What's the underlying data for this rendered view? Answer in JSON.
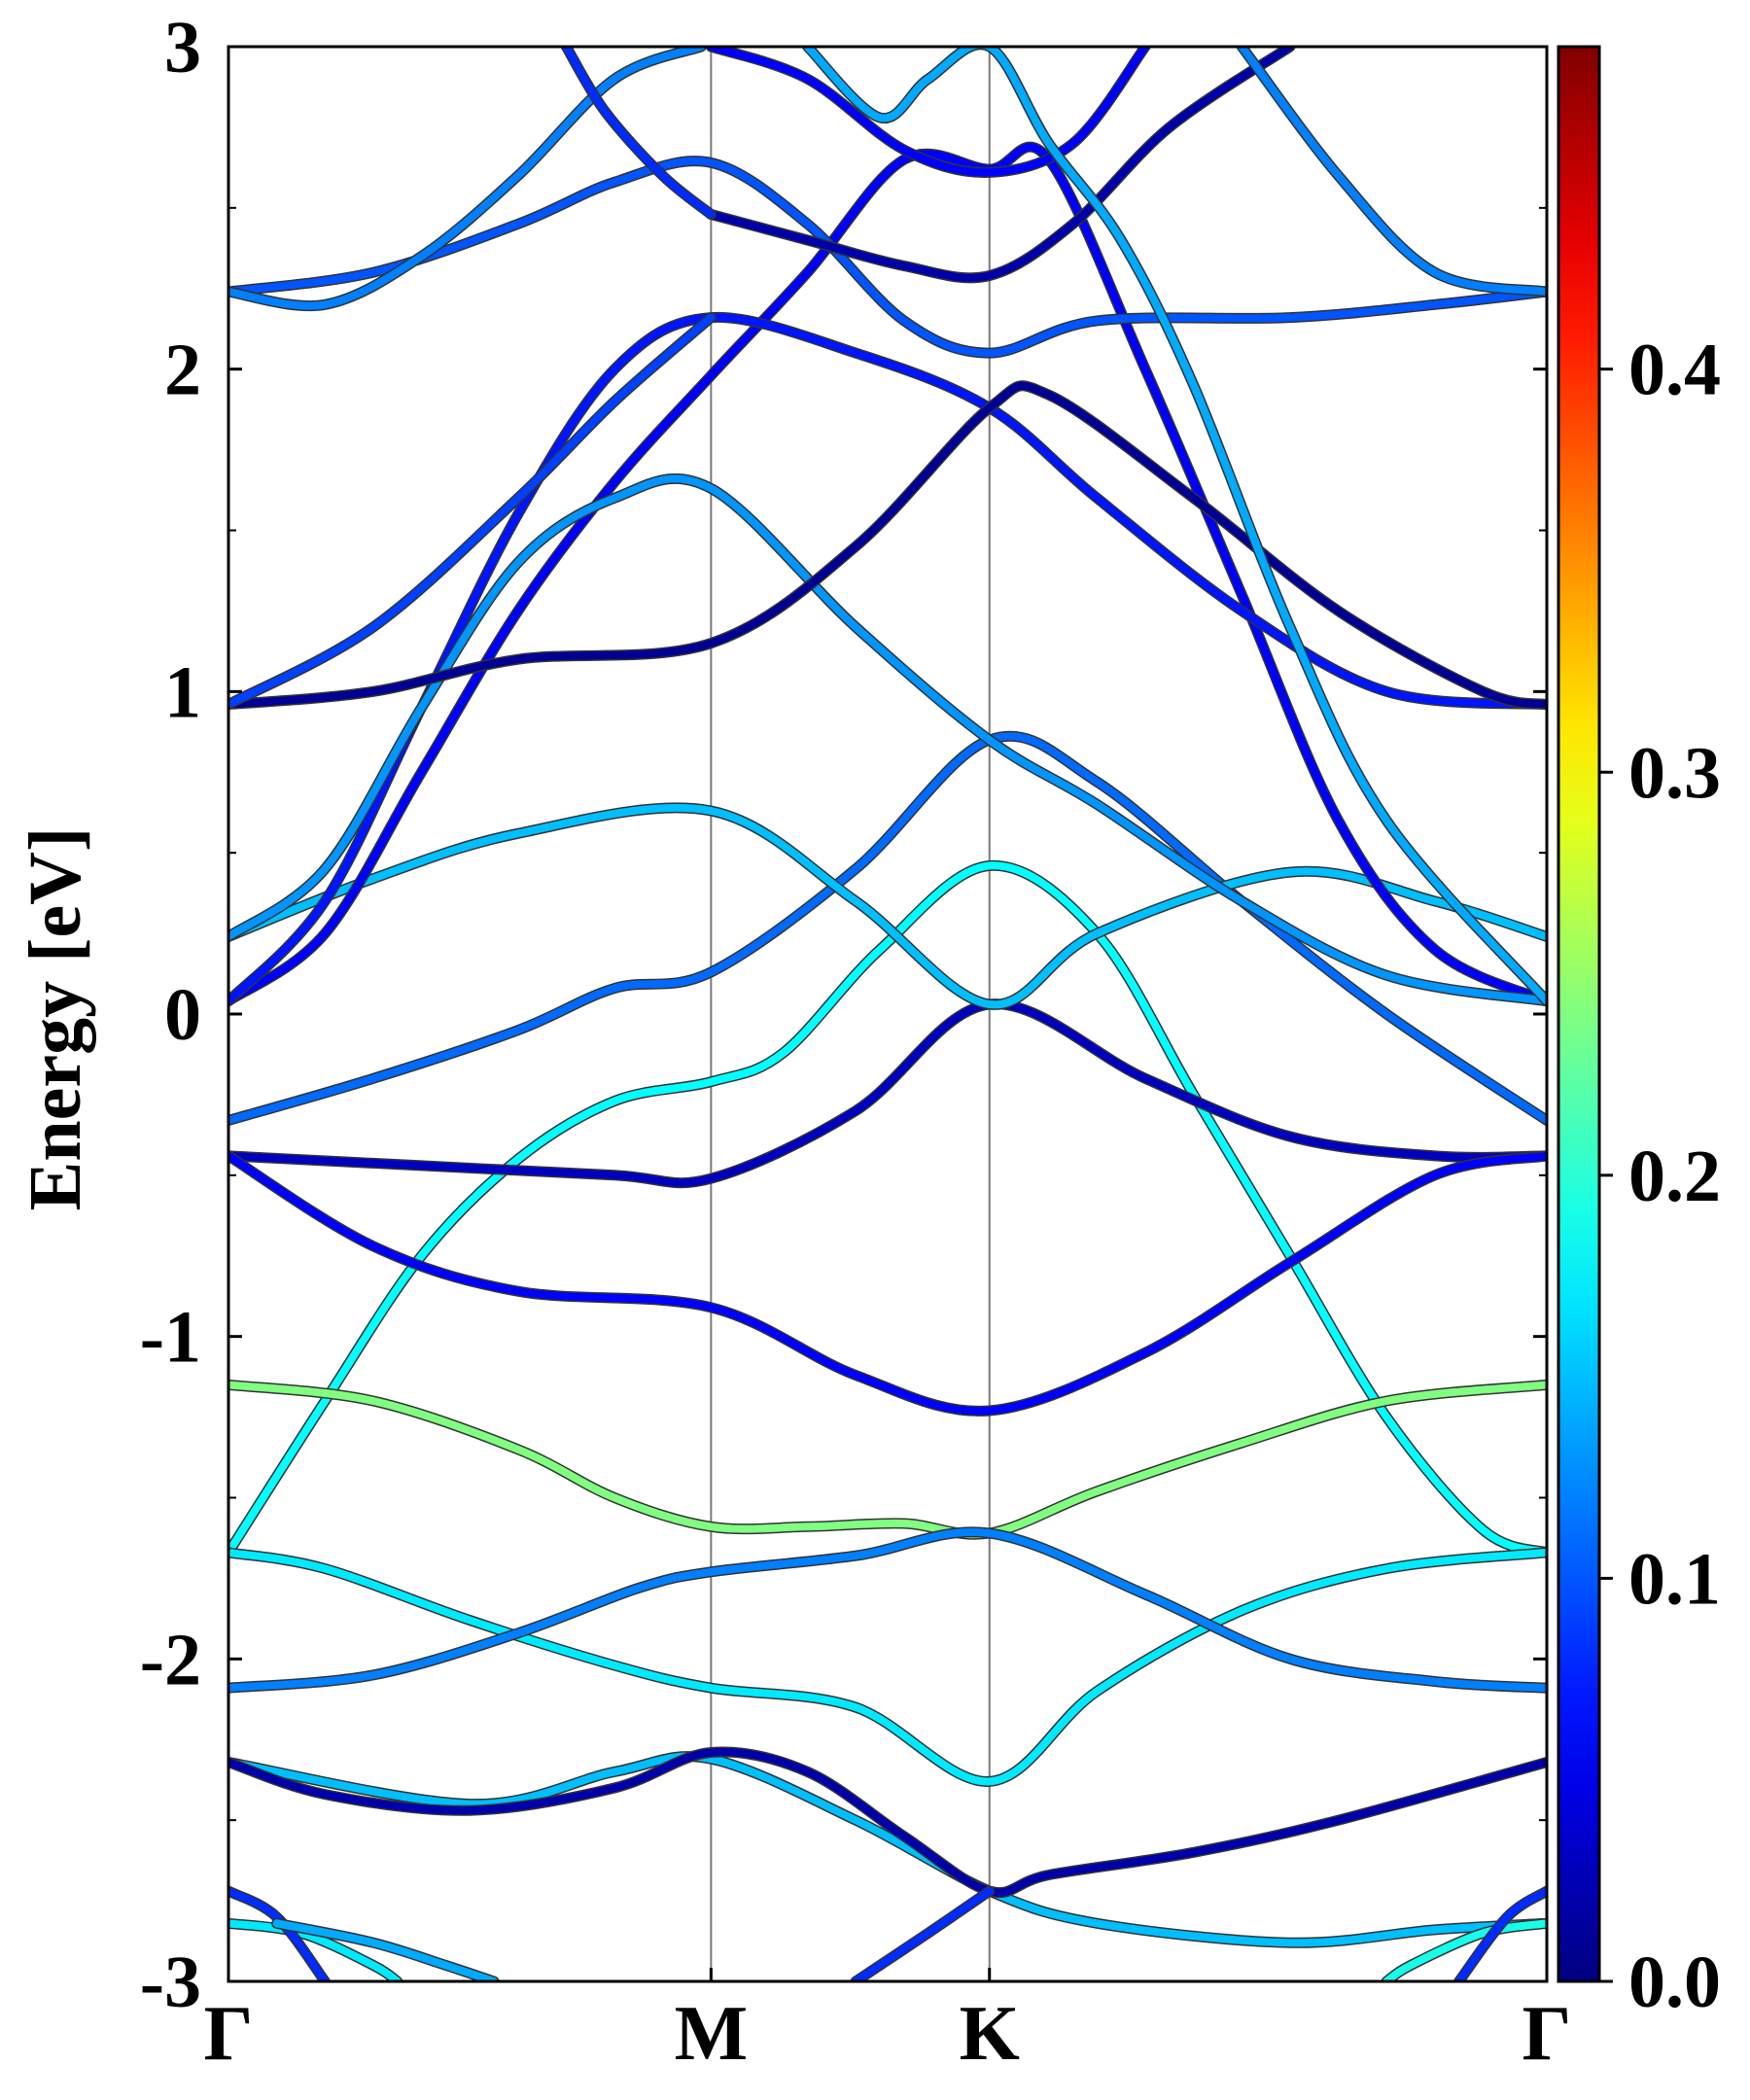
{
  "chart_data": {
    "type": "line",
    "title": "",
    "ylabel": "Energy [eV]",
    "xlabel": "",
    "ylim": [
      -3,
      3
    ],
    "x_ticks": [
      {
        "label": "Γ",
        "x": 0.0
      },
      {
        "label": "M",
        "x": 1.0
      },
      {
        "label": "K",
        "x": 1.577
      },
      {
        "label": "Γ",
        "x": 2.732
      }
    ],
    "y_ticks": [
      {
        "label": "3",
        "value": 3
      },
      {
        "label": "2",
        "value": 2
      },
      {
        "label": "1",
        "value": 1
      },
      {
        "label": "0",
        "value": 0
      },
      {
        "label": "-1",
        "value": -1
      },
      {
        "label": "-2",
        "value": -2
      },
      {
        "label": "-3",
        "value": -3
      }
    ],
    "y_minor_step": 0.5,
    "grid": false,
    "colorbar": {
      "colormap": "jet",
      "range": [
        0.0,
        0.48
      ],
      "ticks": [
        {
          "label": "0.0",
          "value": 0.0
        },
        {
          "label": "0.1",
          "value": 0.1
        },
        {
          "label": "0.2",
          "value": 0.2
        },
        {
          "label": "0.3",
          "value": 0.3
        },
        {
          "label": "0.4",
          "value": 0.4
        }
      ]
    },
    "series": [
      {
        "c": 0.18,
        "points": [
          [
            0,
            -1.67
          ],
          [
            0.2,
            -1.2
          ],
          [
            0.4,
            -0.75
          ],
          [
            0.6,
            -0.45
          ],
          [
            0.8,
            -0.27
          ],
          [
            1.0,
            -0.21
          ],
          [
            1.15,
            -0.12
          ],
          [
            1.35,
            0.2
          ],
          [
            1.577,
            0.46
          ],
          [
            1.8,
            0.25
          ],
          [
            2.0,
            -0.25
          ],
          [
            2.2,
            -0.75
          ],
          [
            2.4,
            -1.25
          ],
          [
            2.6,
            -1.6
          ],
          [
            2.732,
            -1.67
          ]
        ]
      },
      {
        "c": 0.24,
        "points": [
          [
            0,
            -1.15
          ],
          [
            0.3,
            -1.2
          ],
          [
            0.6,
            -1.35
          ],
          [
            0.8,
            -1.5
          ],
          [
            1.0,
            -1.59
          ],
          [
            1.2,
            -1.59
          ],
          [
            1.4,
            -1.58
          ],
          [
            1.577,
            -1.61
          ],
          [
            1.8,
            -1.48
          ],
          [
            2.1,
            -1.33
          ],
          [
            2.4,
            -1.2
          ],
          [
            2.732,
            -1.15
          ]
        ]
      },
      {
        "c": 0.17,
        "points": [
          [
            0,
            -1.67
          ],
          [
            0.2,
            -1.72
          ],
          [
            0.5,
            -1.88
          ],
          [
            0.8,
            -2.02
          ],
          [
            1.0,
            -2.09
          ],
          [
            1.3,
            -2.15
          ],
          [
            1.577,
            -2.38
          ],
          [
            1.8,
            -2.1
          ],
          [
            2.1,
            -1.85
          ],
          [
            2.4,
            -1.72
          ],
          [
            2.732,
            -1.67
          ]
        ]
      },
      {
        "c": 0.12,
        "points": [
          [
            0,
            -2.09
          ],
          [
            0.3,
            -2.05
          ],
          [
            0.6,
            -1.92
          ],
          [
            0.85,
            -1.78
          ],
          [
            1.0,
            -1.73
          ],
          [
            1.3,
            -1.68
          ],
          [
            1.577,
            -1.61
          ],
          [
            1.9,
            -1.8
          ],
          [
            2.2,
            -2.0
          ],
          [
            2.5,
            -2.07
          ],
          [
            2.732,
            -2.09
          ]
        ]
      },
      {
        "c": 0.15,
        "points": [
          [
            0,
            -2.32
          ],
          [
            0.5,
            -2.45
          ],
          [
            0.8,
            -2.35
          ],
          [
            1.0,
            -2.31
          ],
          [
            1.3,
            -2.5
          ],
          [
            1.577,
            -2.72
          ],
          [
            1.8,
            -2.82
          ],
          [
            2.2,
            -2.88
          ],
          [
            2.5,
            -2.84
          ],
          [
            2.732,
            -2.82
          ]
        ]
      },
      {
        "c": 0.03,
        "points": [
          [
            0,
            -0.44
          ],
          [
            0.4,
            -0.47
          ],
          [
            0.8,
            -0.5
          ],
          [
            1.0,
            -0.51
          ],
          [
            1.3,
            -0.3
          ],
          [
            1.577,
            0.03
          ],
          [
            1.9,
            -0.2
          ],
          [
            2.2,
            -0.38
          ],
          [
            2.5,
            -0.44
          ],
          [
            2.732,
            -0.44
          ]
        ]
      },
      {
        "c": 0.06,
        "points": [
          [
            0,
            -0.44
          ],
          [
            0.3,
            -0.72
          ],
          [
            0.6,
            -0.86
          ],
          [
            1.0,
            -0.91
          ],
          [
            1.3,
            -1.12
          ],
          [
            1.577,
            -1.23
          ],
          [
            1.9,
            -1.05
          ],
          [
            2.2,
            -0.77
          ],
          [
            2.5,
            -0.5
          ],
          [
            2.732,
            -0.44
          ]
        ]
      },
      {
        "c": 0.02,
        "points": [
          [
            0,
            -2.32
          ],
          [
            0.2,
            -2.42
          ],
          [
            0.5,
            -2.47
          ],
          [
            0.8,
            -2.4
          ],
          [
            1.0,
            -2.29
          ],
          [
            1.2,
            -2.35
          ],
          [
            1.4,
            -2.55
          ],
          [
            1.577,
            -2.72
          ],
          [
            1.7,
            -2.67
          ],
          [
            2.0,
            -2.6
          ],
          [
            2.3,
            -2.5
          ],
          [
            2.732,
            -2.32
          ]
        ]
      },
      {
        "c": 0.11,
        "points": [
          [
            0,
            -0.33
          ],
          [
            0.3,
            -0.2
          ],
          [
            0.6,
            -0.05
          ],
          [
            0.8,
            0.08
          ],
          [
            1.0,
            0.13
          ],
          [
            1.3,
            0.45
          ],
          [
            1.577,
            0.85
          ],
          [
            1.8,
            0.72
          ],
          [
            2.1,
            0.35
          ],
          [
            2.4,
            0.0
          ],
          [
            2.732,
            -0.33
          ]
        ]
      },
      {
        "c": 0.15,
        "points": [
          [
            0,
            0.24
          ],
          [
            0.3,
            0.42
          ],
          [
            0.6,
            0.56
          ],
          [
            1.0,
            0.63
          ],
          [
            1.3,
            0.35
          ],
          [
            1.577,
            0.03
          ],
          [
            1.8,
            0.25
          ],
          [
            2.2,
            0.44
          ],
          [
            2.5,
            0.35
          ],
          [
            2.732,
            0.24
          ]
        ]
      },
      {
        "c": 0.06,
        "points": [
          [
            0,
            0.04
          ],
          [
            0.2,
            0.25
          ],
          [
            0.4,
            0.75
          ],
          [
            0.6,
            1.25
          ],
          [
            0.8,
            1.65
          ],
          [
            1.0,
            1.98
          ],
          [
            1.2,
            2.3
          ],
          [
            1.4,
            2.65
          ],
          [
            1.577,
            2.62
          ],
          [
            1.7,
            2.65
          ],
          [
            1.9,
            2.0
          ],
          [
            2.1,
            1.3
          ],
          [
            2.3,
            0.6
          ],
          [
            2.5,
            0.2
          ],
          [
            2.732,
            0.04
          ]
        ]
      },
      {
        "c": 0.07,
        "points": [
          [
            0,
            0.04
          ],
          [
            0.2,
            0.35
          ],
          [
            0.4,
            0.95
          ],
          [
            0.6,
            1.55
          ],
          [
            0.8,
            2.0
          ],
          [
            1.0,
            2.16
          ],
          [
            1.3,
            2.05
          ],
          [
            1.577,
            1.88
          ],
          [
            1.8,
            1.6
          ],
          [
            2.1,
            1.25
          ],
          [
            2.4,
            1.0
          ],
          [
            2.732,
            0.96
          ]
        ]
      },
      {
        "c": 0.13,
        "points": [
          [
            0,
            0.24
          ],
          [
            0.2,
            0.45
          ],
          [
            0.4,
            0.95
          ],
          [
            0.6,
            1.4
          ],
          [
            0.8,
            1.6
          ],
          [
            1.0,
            1.63
          ],
          [
            1.3,
            1.2
          ],
          [
            1.577,
            0.85
          ],
          [
            1.8,
            0.65
          ],
          [
            2.1,
            0.35
          ],
          [
            2.4,
            0.12
          ],
          [
            2.732,
            0.04
          ]
        ]
      },
      {
        "c": 0.01,
        "points": [
          [
            0,
            0.96
          ],
          [
            0.3,
            1.0
          ],
          [
            0.6,
            1.1
          ],
          [
            1.0,
            1.15
          ],
          [
            1.3,
            1.45
          ],
          [
            1.577,
            1.88
          ],
          [
            1.7,
            1.92
          ],
          [
            2.0,
            1.6
          ],
          [
            2.3,
            1.25
          ],
          [
            2.6,
            1.0
          ],
          [
            2.732,
            0.96
          ]
        ]
      },
      {
        "c": 0.09,
        "points": [
          [
            0,
            0.96
          ],
          [
            0.3,
            1.2
          ],
          [
            0.6,
            1.6
          ],
          [
            0.8,
            1.9
          ],
          [
            1.0,
            2.16
          ]
        ]
      },
      {
        "c": 0.1,
        "points": [
          [
            0,
            2.24
          ],
          [
            0.3,
            2.3
          ],
          [
            0.6,
            2.45
          ],
          [
            0.8,
            2.58
          ],
          [
            1.0,
            2.64
          ],
          [
            1.2,
            2.45
          ],
          [
            1.4,
            2.15
          ],
          [
            1.577,
            2.05
          ],
          [
            1.8,
            2.15
          ],
          [
            2.2,
            2.16
          ],
          [
            2.5,
            2.2
          ],
          [
            2.732,
            2.24
          ]
        ]
      },
      {
        "c": 0.12,
        "points": [
          [
            0,
            2.24
          ],
          [
            0.2,
            2.2
          ],
          [
            0.4,
            2.35
          ],
          [
            0.6,
            2.6
          ],
          [
            0.8,
            2.9
          ],
          [
            0.98,
            3.0
          ]
        ]
      },
      {
        "c": 0.02,
        "points": [
          [
            1.0,
            2.48
          ],
          [
            1.2,
            2.4
          ],
          [
            1.4,
            2.32
          ],
          [
            1.577,
            2.29
          ],
          [
            1.75,
            2.45
          ],
          [
            1.95,
            2.75
          ],
          [
            2.2,
            3.0
          ]
        ]
      },
      {
        "c": 0.08,
        "points": [
          [
            1.0,
            2.48
          ],
          [
            0.9,
            2.6
          ],
          [
            0.78,
            2.8
          ],
          [
            0.7,
            3.0
          ]
        ]
      },
      {
        "c": 0.06,
        "points": [
          [
            1.0,
            3.0
          ],
          [
            1.2,
            2.9
          ],
          [
            1.4,
            2.68
          ],
          [
            1.577,
            2.61
          ],
          [
            1.75,
            2.7
          ],
          [
            1.9,
            3.0
          ]
        ]
      },
      {
        "c": 0.14,
        "points": [
          [
            1.2,
            3.0
          ],
          [
            1.35,
            2.78
          ],
          [
            1.45,
            2.9
          ],
          [
            1.577,
            3.0
          ],
          [
            1.7,
            2.7
          ],
          [
            1.85,
            2.4
          ],
          [
            2.0,
            1.95
          ],
          [
            2.2,
            1.2
          ],
          [
            2.4,
            0.6
          ],
          [
            2.732,
            0.04
          ]
        ]
      },
      {
        "c": 0.12,
        "points": [
          [
            2.732,
            2.24
          ],
          [
            2.5,
            2.3
          ],
          [
            2.3,
            2.6
          ],
          [
            2.1,
            3.0
          ]
        ]
      },
      {
        "c": 0.17,
        "points": [
          [
            0,
            -2.82
          ],
          [
            0.15,
            -2.85
          ],
          [
            0.3,
            -2.95
          ],
          [
            0.35,
            -3.0
          ]
        ]
      },
      {
        "c": 0.08,
        "points": [
          [
            0,
            -2.72
          ],
          [
            0.1,
            -2.8
          ],
          [
            0.2,
            -3.0
          ]
        ]
      },
      {
        "c": 0.14,
        "points": [
          [
            0.1,
            -2.82
          ],
          [
            0.3,
            -2.88
          ],
          [
            0.45,
            -2.95
          ],
          [
            0.55,
            -3.0
          ]
        ]
      },
      {
        "c": 0.19,
        "points": [
          [
            2.732,
            -2.82
          ],
          [
            2.6,
            -2.85
          ],
          [
            2.45,
            -2.95
          ],
          [
            2.4,
            -3.0
          ]
        ]
      },
      {
        "c": 0.08,
        "points": [
          [
            2.732,
            -2.72
          ],
          [
            2.65,
            -2.8
          ],
          [
            2.55,
            -3.0
          ]
        ]
      },
      {
        "c": 0.08,
        "points": [
          [
            1.3,
            -3.0
          ],
          [
            1.45,
            -2.85
          ],
          [
            1.577,
            -2.72
          ]
        ]
      }
    ]
  }
}
